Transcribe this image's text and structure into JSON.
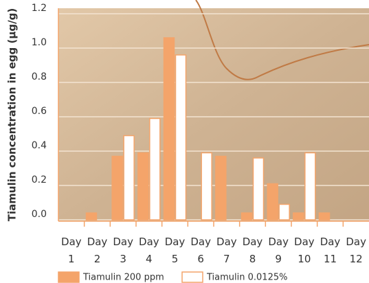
{
  "chart_data": {
    "type": "bar",
    "y_label": "Tiamulin concentration in egg (µg/g)",
    "categories": [
      "Day 1",
      "Day 2",
      "Day 3",
      "Day 4",
      "Day 5",
      "Day 6",
      "Day 7",
      "Day 8",
      "Day 9",
      "Day 10",
      "Day 11",
      "Day 12"
    ],
    "series": [
      {
        "name": "Tiamulin 200 ppm",
        "color": "#f4a46a",
        "values": [
          null,
          0.04,
          0.37,
          0.39,
          1.06,
          null,
          0.37,
          0.04,
          0.21,
          0.04,
          0.04,
          null
        ]
      },
      {
        "name": "Tiamulin 0.0125%",
        "color": "#ffffff",
        "values": [
          null,
          null,
          0.49,
          0.59,
          0.96,
          0.39,
          null,
          0.36,
          0.09,
          0.39,
          null,
          null
        ]
      }
    ],
    "ylim": [
      0,
      1.2
    ],
    "yticks": [
      {
        "value": 0,
        "label": "0.0"
      },
      {
        "value": 0.2,
        "label": "0.2"
      },
      {
        "value": 0.4,
        "label": "0.4"
      },
      {
        "value": 0.6,
        "label": "0.6"
      },
      {
        "value": 0.8,
        "label": "0.8"
      },
      {
        "value": 1,
        "label": "1.0"
      },
      {
        "value": 1.2,
        "label": "1.2"
      }
    ],
    "grid": true
  }
}
